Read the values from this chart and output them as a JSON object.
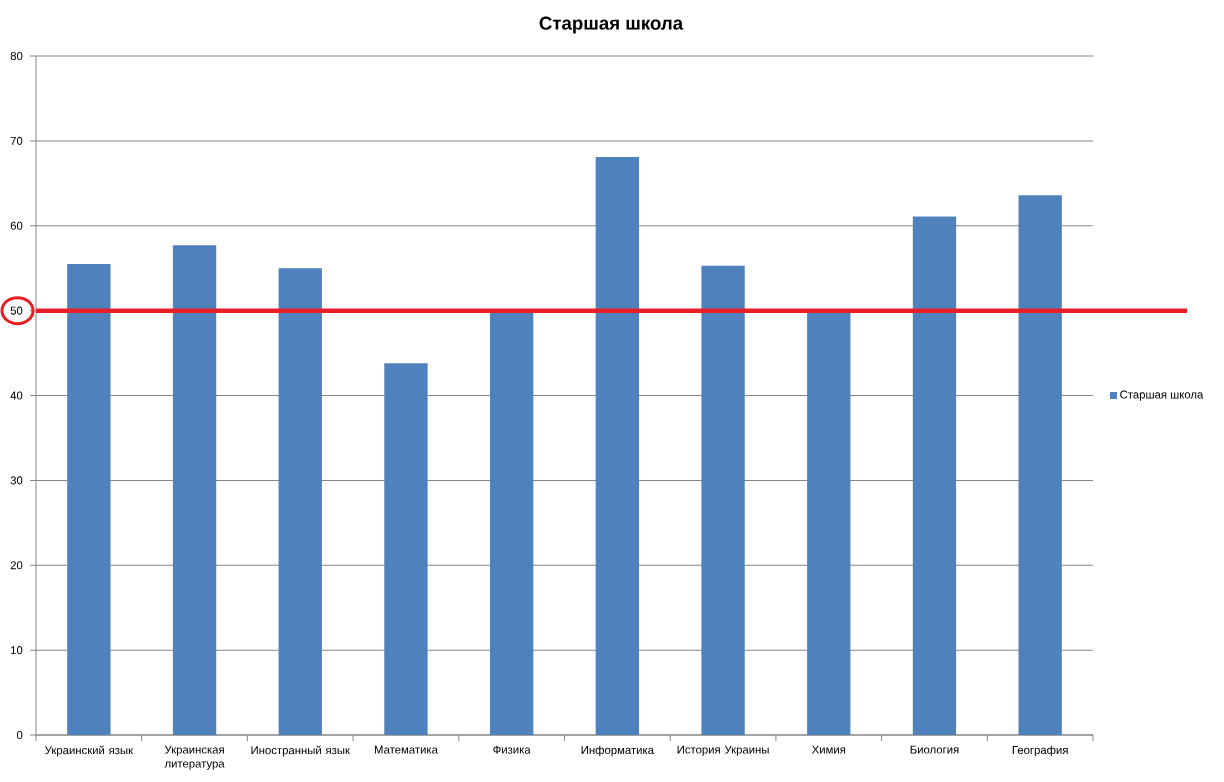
{
  "chart_data": {
    "type": "bar",
    "title": "Старшая школа",
    "categories": [
      "Украинский язык",
      "Украинская литература",
      "Иностранный язык",
      "Математика",
      "Физика",
      "Информатика",
      "История Украины",
      "Химия",
      "Биология",
      "География"
    ],
    "series": [
      {
        "name": "Старшая школа",
        "color": "#4f81bd",
        "values": [
          55.5,
          57.7,
          55.0,
          43.8,
          50,
          68.1,
          55.3,
          50,
          61.1,
          63.6
        ]
      }
    ],
    "ylim": [
      0,
      80
    ],
    "yticks": [
      0,
      10,
      20,
      30,
      40,
      50,
      60,
      70,
      80
    ],
    "grid": "y",
    "legend": "right",
    "ref_lines": [
      {
        "axis": "y",
        "value": 50,
        "color": "#e81f27"
      }
    ]
  }
}
